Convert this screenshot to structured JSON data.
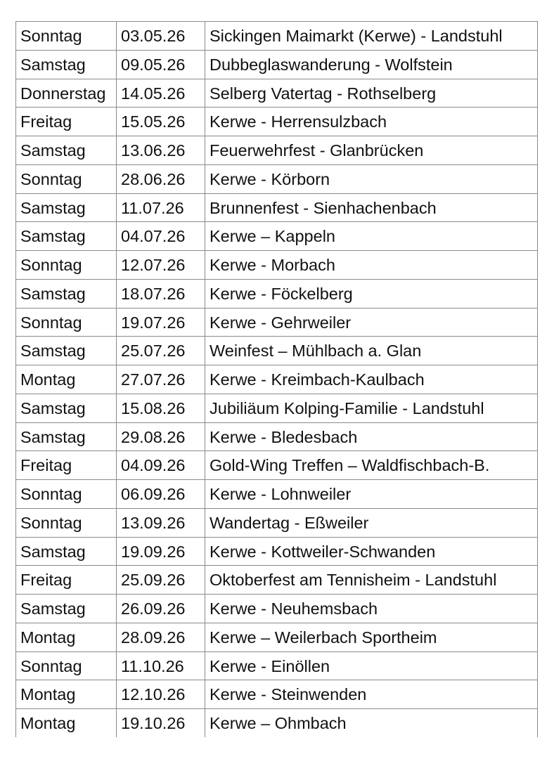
{
  "rows": [
    [
      "Sonntag",
      "03.05.26",
      "Sickingen Maimarkt (Kerwe) - Landstuhl"
    ],
    [
      "Samstag",
      "09.05.26",
      "Dubbeglaswanderung - Wolfstein"
    ],
    [
      "Donnerstag",
      "14.05.26",
      "Selberg Vatertag - Rothselberg"
    ],
    [
      "Freitag",
      "15.05.26",
      "Kerwe - Herrensulzbach"
    ],
    [
      "Samstag",
      "13.06.26",
      "Feuerwehrfest - Glanbrücken"
    ],
    [
      "Sonntag",
      "28.06.26",
      "Kerwe - Körborn"
    ],
    [
      "Samstag",
      "11.07.26",
      "Brunnenfest - Sienhachenbach"
    ],
    [
      "Samstag",
      "04.07.26",
      "Kerwe – Kappeln"
    ],
    [
      "Sonntag",
      "12.07.26",
      "Kerwe - Morbach"
    ],
    [
      "Samstag",
      "18.07.26",
      "Kerwe - Föckelberg"
    ],
    [
      "Sonntag",
      "19.07.26",
      "Kerwe - Gehrweiler"
    ],
    [
      "Samstag",
      "25.07.26",
      "Weinfest – Mühlbach a. Glan"
    ],
    [
      "Montag",
      "27.07.26",
      "Kerwe - Kreimbach-Kaulbach"
    ],
    [
      "Samstag",
      "15.08.26",
      "Jubiliäum Kolping-Familie - Landstuhl"
    ],
    [
      "Samstag",
      "29.08.26",
      "Kerwe - Bledesbach"
    ],
    [
      "Freitag",
      "04.09.26",
      "Gold-Wing Treffen – Waldfischbach-B."
    ],
    [
      "Sonntag",
      "06.09.26",
      "Kerwe - Lohnweiler"
    ],
    [
      "Sonntag",
      "13.09.26",
      "Wandertag - Eßweiler"
    ],
    [
      "Samstag",
      "19.09.26",
      "Kerwe - Kottweiler-Schwanden"
    ],
    [
      "Freitag",
      "25.09.26",
      "Oktoberfest am Tennisheim - Landstuhl"
    ],
    [
      "Samstag",
      "26.09.26",
      "Kerwe - Neuhemsbach"
    ],
    [
      "Montag",
      "28.09.26",
      "Kerwe – Weilerbach Sportheim"
    ],
    [
      "Sonntag",
      "11.10.26",
      "Kerwe - Einöllen"
    ],
    [
      "Montag",
      "12.10.26",
      "Kerwe - Steinwenden"
    ],
    [
      "Montag",
      "19.10.26",
      "Kerwe – Ohmbach"
    ]
  ]
}
